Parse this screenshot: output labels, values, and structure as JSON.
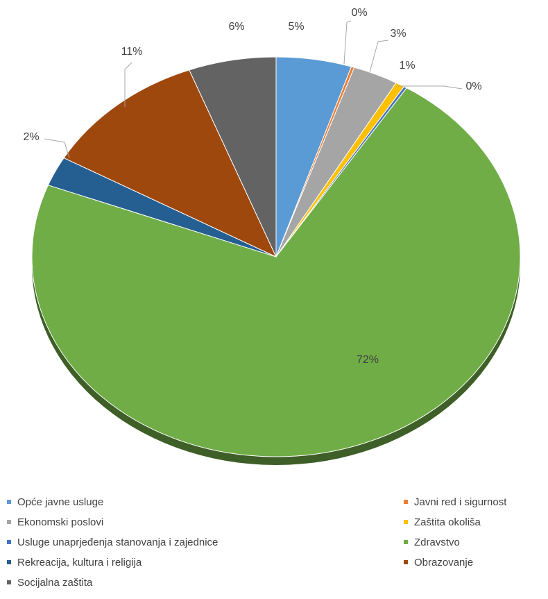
{
  "chart_data": {
    "type": "pie",
    "title": "",
    "series": [
      {
        "values": [
          {
            "label": "Opće javne usluge",
            "value": 5,
            "value_label": "5%",
            "color": "#5b9bd5"
          },
          {
            "label": "Javni red i sigurnost",
            "value": 0.2,
            "value_label": "0%",
            "color": "#ed7d31"
          },
          {
            "label": "Ekonomski poslovi",
            "value": 3,
            "value_label": "3%",
            "color": "#a5a5a5"
          },
          {
            "label": "Zaštita okoliša",
            "value": 0.6,
            "value_label": "1%",
            "color": "#ffc000"
          },
          {
            "label": "Usluge unaprjeđenja stanovanja i zajednice",
            "value": 0.2,
            "value_label": "0%",
            "color": "#4472c4"
          },
          {
            "label": "Zdravstvo",
            "value": 72,
            "value_label": "72%",
            "color": "#70ad47"
          },
          {
            "label": "Rekreacija, kultura i religija",
            "value": 2.4,
            "value_label": "2%",
            "color": "#255e91"
          },
          {
            "label": "Obrazovanje",
            "value": 11,
            "value_label": "11%",
            "color": "#9e480e"
          },
          {
            "label": "Socijalna zaštita",
            "value": 5.8,
            "value_label": "6%",
            "color": "#636363"
          }
        ]
      }
    ],
    "legend": {
      "placement": "bottom",
      "items": [
        {
          "label": "Opće javne usluge",
          "color": "#5b9bd5"
        },
        {
          "label": "Javni red i sigurnost",
          "color": "#ed7d31"
        },
        {
          "label": "Ekonomski poslovi",
          "color": "#a5a5a5"
        },
        {
          "label": "Zaštita okoliša",
          "color": "#ffc000"
        },
        {
          "label": "Usluge unaprjeđenja stanovanja i zajednice",
          "color": "#4472c4"
        },
        {
          "label": "Zdravstvo",
          "color": "#70ad47"
        },
        {
          "label": "Rekreacija, kultura i religija",
          "color": "#255e91"
        },
        {
          "label": "Obrazovanje",
          "color": "#9e480e"
        },
        {
          "label": "Socijalna zaštita",
          "color": "#636363"
        }
      ]
    },
    "style": "3d-pie",
    "start_angle": "12 o'clock, clockwise"
  }
}
